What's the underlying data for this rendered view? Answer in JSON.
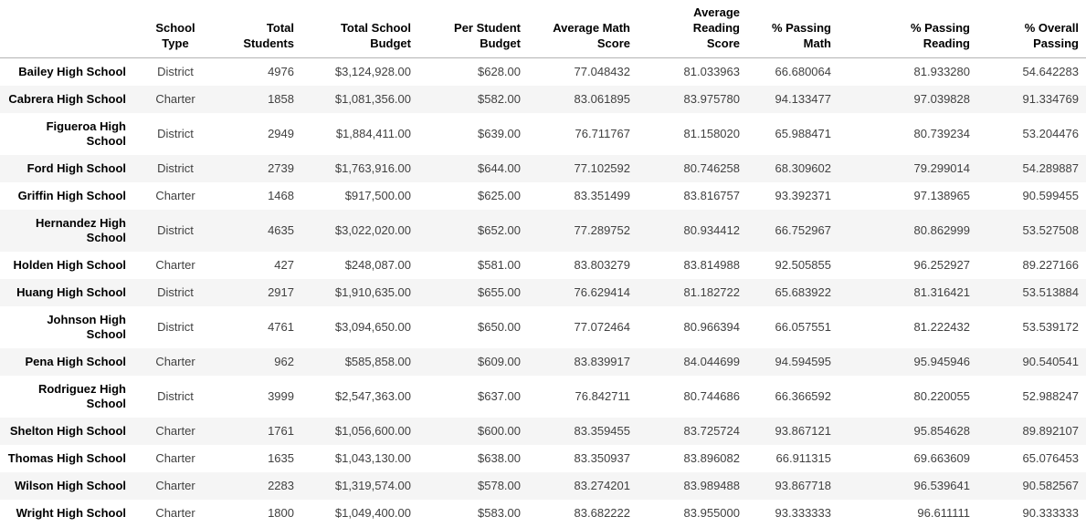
{
  "styles": {
    "stripe_color": "#f5f5f5",
    "header_rule_color": "#b3b3b3",
    "header_text_color": "#000000",
    "body_text_color": "#414141",
    "background_color": "#ffffff"
  },
  "chart_data": {
    "type": "table",
    "corner_label": "",
    "columns": [
      {
        "key": "school-type",
        "label": "School Type",
        "lines": [
          "School",
          "Type"
        ]
      },
      {
        "key": "total-students",
        "label": "Total Students",
        "lines": [
          "Total",
          "Students"
        ]
      },
      {
        "key": "total-school-budget",
        "label": "Total School Budget",
        "lines": [
          "Total School",
          "Budget"
        ]
      },
      {
        "key": "per-student-budget",
        "label": "Per Student Budget",
        "lines": [
          "Per Student",
          "Budget"
        ]
      },
      {
        "key": "average-math-score",
        "label": "Average Math Score",
        "lines": [
          "Average Math",
          "Score"
        ]
      },
      {
        "key": "average-reading-score",
        "label": "Average Reading Score",
        "lines": [
          "Average Reading",
          "Score"
        ]
      },
      {
        "key": "pct-passing-math",
        "label": "% Passing Math",
        "lines": [
          "% Passing",
          "Math"
        ]
      },
      {
        "key": "pct-passing-reading",
        "label": "% Passing Reading",
        "lines": [
          "% Passing",
          "Reading"
        ]
      },
      {
        "key": "pct-overall-passing",
        "label": "% Overall Passing",
        "lines": [
          "% Overall",
          "Passing"
        ]
      }
    ],
    "rows": [
      {
        "name": "Bailey High School",
        "values": [
          "District",
          "4976",
          "$3,124,928.00",
          "$628.00",
          "77.048432",
          "81.033963",
          "66.680064",
          "81.933280",
          "54.642283"
        ]
      },
      {
        "name": "Cabrera High School",
        "values": [
          "Charter",
          "1858",
          "$1,081,356.00",
          "$582.00",
          "83.061895",
          "83.975780",
          "94.133477",
          "97.039828",
          "91.334769"
        ]
      },
      {
        "name": "Figueroa High School",
        "values": [
          "District",
          "2949",
          "$1,884,411.00",
          "$639.00",
          "76.711767",
          "81.158020",
          "65.988471",
          "80.739234",
          "53.204476"
        ]
      },
      {
        "name": "Ford High School",
        "values": [
          "District",
          "2739",
          "$1,763,916.00",
          "$644.00",
          "77.102592",
          "80.746258",
          "68.309602",
          "79.299014",
          "54.289887"
        ]
      },
      {
        "name": "Griffin High School",
        "values": [
          "Charter",
          "1468",
          "$917,500.00",
          "$625.00",
          "83.351499",
          "83.816757",
          "93.392371",
          "97.138965",
          "90.599455"
        ]
      },
      {
        "name": "Hernandez High School",
        "values": [
          "District",
          "4635",
          "$3,022,020.00",
          "$652.00",
          "77.289752",
          "80.934412",
          "66.752967",
          "80.862999",
          "53.527508"
        ]
      },
      {
        "name": "Holden High School",
        "values": [
          "Charter",
          "427",
          "$248,087.00",
          "$581.00",
          "83.803279",
          "83.814988",
          "92.505855",
          "96.252927",
          "89.227166"
        ]
      },
      {
        "name": "Huang High School",
        "values": [
          "District",
          "2917",
          "$1,910,635.00",
          "$655.00",
          "76.629414",
          "81.182722",
          "65.683922",
          "81.316421",
          "53.513884"
        ]
      },
      {
        "name": "Johnson High School",
        "values": [
          "District",
          "4761",
          "$3,094,650.00",
          "$650.00",
          "77.072464",
          "80.966394",
          "66.057551",
          "81.222432",
          "53.539172"
        ]
      },
      {
        "name": "Pena High School",
        "values": [
          "Charter",
          "962",
          "$585,858.00",
          "$609.00",
          "83.839917",
          "84.044699",
          "94.594595",
          "95.945946",
          "90.540541"
        ]
      },
      {
        "name": "Rodriguez High School",
        "values": [
          "District",
          "3999",
          "$2,547,363.00",
          "$637.00",
          "76.842711",
          "80.744686",
          "66.366592",
          "80.220055",
          "52.988247"
        ]
      },
      {
        "name": "Shelton High School",
        "values": [
          "Charter",
          "1761",
          "$1,056,600.00",
          "$600.00",
          "83.359455",
          "83.725724",
          "93.867121",
          "95.854628",
          "89.892107"
        ]
      },
      {
        "name": "Thomas High School",
        "values": [
          "Charter",
          "1635",
          "$1,043,130.00",
          "$638.00",
          "83.350937",
          "83.896082",
          "66.911315",
          "69.663609",
          "65.076453"
        ]
      },
      {
        "name": "Wilson High School",
        "values": [
          "Charter",
          "2283",
          "$1,319,574.00",
          "$578.00",
          "83.274201",
          "83.989488",
          "93.867718",
          "96.539641",
          "90.582567"
        ]
      },
      {
        "name": "Wright High School",
        "values": [
          "Charter",
          "1800",
          "$1,049,400.00",
          "$583.00",
          "83.682222",
          "83.955000",
          "93.333333",
          "96.611111",
          "90.333333"
        ]
      }
    ]
  }
}
